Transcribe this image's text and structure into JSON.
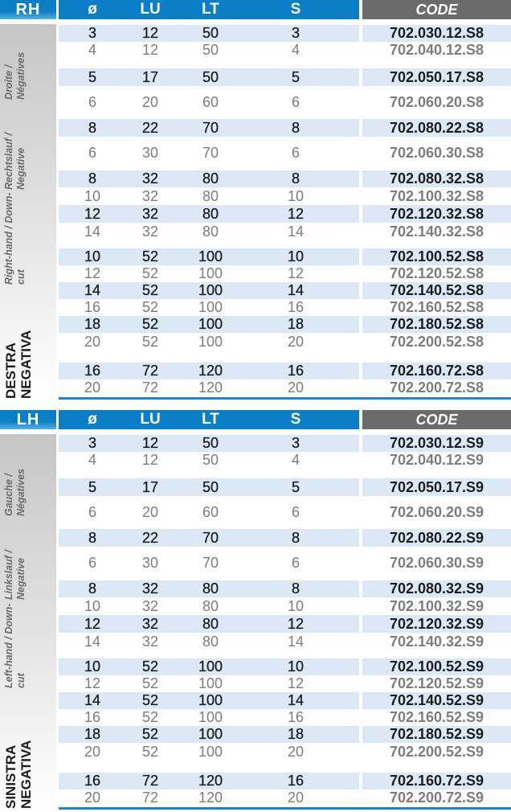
{
  "columns": {
    "side_rh": "RH",
    "side_lh": "LH",
    "d": "ø",
    "lu": "LU",
    "lt": "LT",
    "s": "S",
    "code": "CODE"
  },
  "colors": {
    "header_blue": "#0a7fc8",
    "code_header_gray": "#6b6b6b",
    "row_band": "#dce8f5",
    "bold_text": "#1c1c1c",
    "light_text": "#7d7d7d"
  },
  "sections": [
    {
      "header": "RH",
      "title": "DESTRA NEGATIVA",
      "subtitles": [
        "Right-hand / Down-cut",
        "Rechtslauf / Negative",
        "Droite / Négatives"
      ],
      "rows": [
        [
          "3",
          "12",
          "50",
          "3",
          "702.030.12.S8"
        ],
        [
          "4",
          "12",
          "50",
          "4",
          "702.040.12.S8"
        ],
        [
          "5",
          "17",
          "50",
          "5",
          "702.050.17.S8"
        ],
        [
          "6",
          "20",
          "60",
          "6",
          "702.060.20.S8"
        ],
        [
          "8",
          "22",
          "70",
          "8",
          "702.080.22.S8"
        ],
        [
          "6",
          "30",
          "70",
          "6",
          "702.060.30.S8"
        ],
        [
          "8",
          "32",
          "80",
          "8",
          "702.080.32.S8"
        ],
        [
          "10",
          "32",
          "80",
          "10",
          "702.100.32.S8"
        ],
        [
          "12",
          "32",
          "80",
          "12",
          "702.120.32.S8"
        ],
        [
          "14",
          "32",
          "80",
          "14",
          "702.140.32.S8"
        ],
        [
          "10",
          "52",
          "100",
          "10",
          "702.100.52.S8"
        ],
        [
          "12",
          "52",
          "100",
          "12",
          "702.120.52.S8"
        ],
        [
          "14",
          "52",
          "100",
          "14",
          "702.140.52.S8"
        ],
        [
          "16",
          "52",
          "100",
          "16",
          "702.160.52.S8"
        ],
        [
          "18",
          "52",
          "100",
          "18",
          "702.180.52.S8"
        ],
        [
          "20",
          "52",
          "100",
          "20",
          "702.200.52.S8"
        ],
        [
          "16",
          "72",
          "120",
          "16",
          "702.160.72.S8"
        ],
        [
          "20",
          "72",
          "120",
          "20",
          "702.200.72.S8"
        ]
      ]
    },
    {
      "header": "LH",
      "title": "SINISTRA NEGATIVA",
      "subtitles": [
        "Left-hand / Down-cut",
        "Linkslauf / Negative",
        "Gauche / Négatives"
      ],
      "rows": [
        [
          "3",
          "12",
          "50",
          "3",
          "702.030.12.S9"
        ],
        [
          "4",
          "12",
          "50",
          "4",
          "702.040.12.S9"
        ],
        [
          "5",
          "17",
          "50",
          "5",
          "702.050.17.S9"
        ],
        [
          "6",
          "20",
          "60",
          "6",
          "702.060.20.S9"
        ],
        [
          "8",
          "22",
          "70",
          "8",
          "702.080.22.S9"
        ],
        [
          "6",
          "30",
          "70",
          "6",
          "702.060.30.S9"
        ],
        [
          "8",
          "32",
          "80",
          "8",
          "702.080.32.S9"
        ],
        [
          "10",
          "32",
          "80",
          "10",
          "702.100.32.S9"
        ],
        [
          "12",
          "32",
          "80",
          "12",
          "702.120.32.S9"
        ],
        [
          "14",
          "32",
          "80",
          "14",
          "702.140.32.S9"
        ],
        [
          "10",
          "52",
          "100",
          "10",
          "702.100.52.S9"
        ],
        [
          "12",
          "52",
          "100",
          "12",
          "702.120.52.S9"
        ],
        [
          "14",
          "52",
          "100",
          "14",
          "702.140.52.S9"
        ],
        [
          "16",
          "52",
          "100",
          "16",
          "702.160.52.S9"
        ],
        [
          "18",
          "52",
          "100",
          "18",
          "702.180.52.S9"
        ],
        [
          "20",
          "52",
          "100",
          "20",
          "702.200.52.S9"
        ],
        [
          "16",
          "72",
          "120",
          "16",
          "702.160.72.S9"
        ],
        [
          "20",
          "72",
          "120",
          "20",
          "702.200.72.S9"
        ]
      ]
    }
  ]
}
